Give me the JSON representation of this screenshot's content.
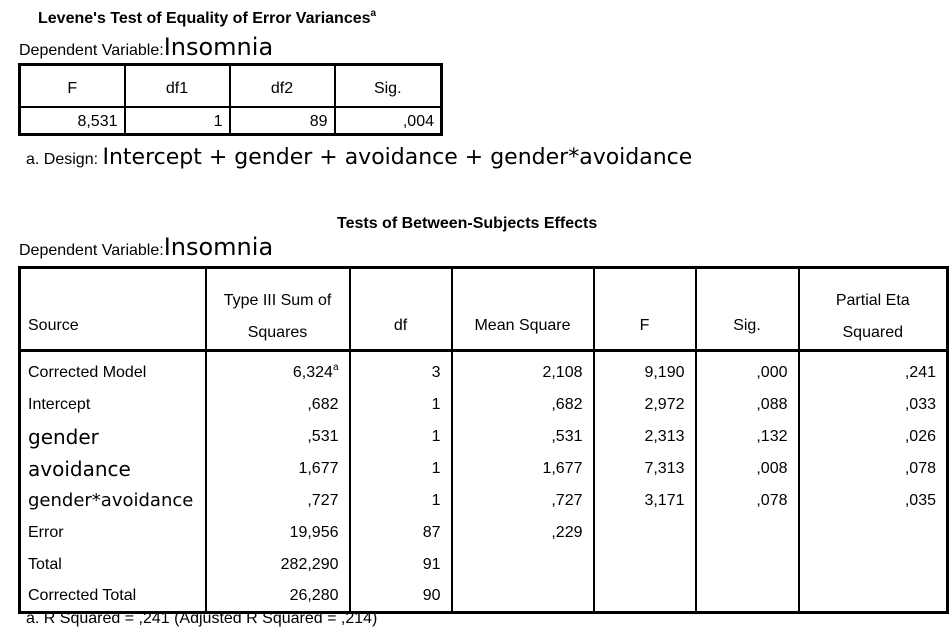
{
  "levene": {
    "title": "Levene's Test of Equality of Error Variances",
    "title_sup": "a",
    "dependent_label": "Dependent Variable:",
    "dependent_value": "Insomnia",
    "columns": [
      "F",
      "df1",
      "df2",
      "Sig."
    ],
    "values": [
      "8,531",
      "1",
      "89",
      ",004"
    ],
    "note_prefix": "a. Design:",
    "note_text": "Intercept + gender + avoidance + gender*avoidance"
  },
  "between": {
    "title": "Tests of Between-Subjects Effects",
    "dependent_label": "Dependent Variable:",
    "dependent_value": "Insomnia",
    "columns": {
      "source": "Source",
      "ss_line1": "Type III Sum of",
      "ss_line2": "Squares",
      "df": "df",
      "ms": "Mean Square",
      "f": "F",
      "sig": "Sig.",
      "eta_line1": "Partial Eta",
      "eta_line2": "Squared"
    },
    "rows": [
      {
        "source": "Corrected Model",
        "ss": "6,324",
        "ss_sup": "a",
        "df": "3",
        "ms": "2,108",
        "f": "9,190",
        "sig": ",000",
        "eta": ",241"
      },
      {
        "source": "Intercept",
        "ss": ",682",
        "df": "1",
        "ms": ",682",
        "f": "2,972",
        "sig": ",088",
        "eta": ",033"
      },
      {
        "source": "gender",
        "ss": ",531",
        "df": "1",
        "ms": ",531",
        "f": "2,313",
        "sig": ",132",
        "eta": ",026"
      },
      {
        "source": "avoidance",
        "ss": "1,677",
        "df": "1",
        "ms": "1,677",
        "f": "7,313",
        "sig": ",008",
        "eta": ",078"
      },
      {
        "source": "gender*avoidance",
        "ss": ",727",
        "df": "1",
        "ms": ",727",
        "f": "3,171",
        "sig": ",078",
        "eta": ",035"
      },
      {
        "source": "Error",
        "ss": "19,956",
        "df": "87",
        "ms": ",229",
        "f": "",
        "sig": "",
        "eta": ""
      },
      {
        "source": "Total",
        "ss": "282,290",
        "df": "91",
        "ms": "",
        "f": "",
        "sig": "",
        "eta": ""
      },
      {
        "source": "Corrected Total",
        "ss": "26,280",
        "df": "90",
        "ms": "",
        "f": "",
        "sig": "",
        "eta": ""
      }
    ],
    "footnote": "a. R Squared = ,241 (Adjusted R Squared = ,214)"
  }
}
